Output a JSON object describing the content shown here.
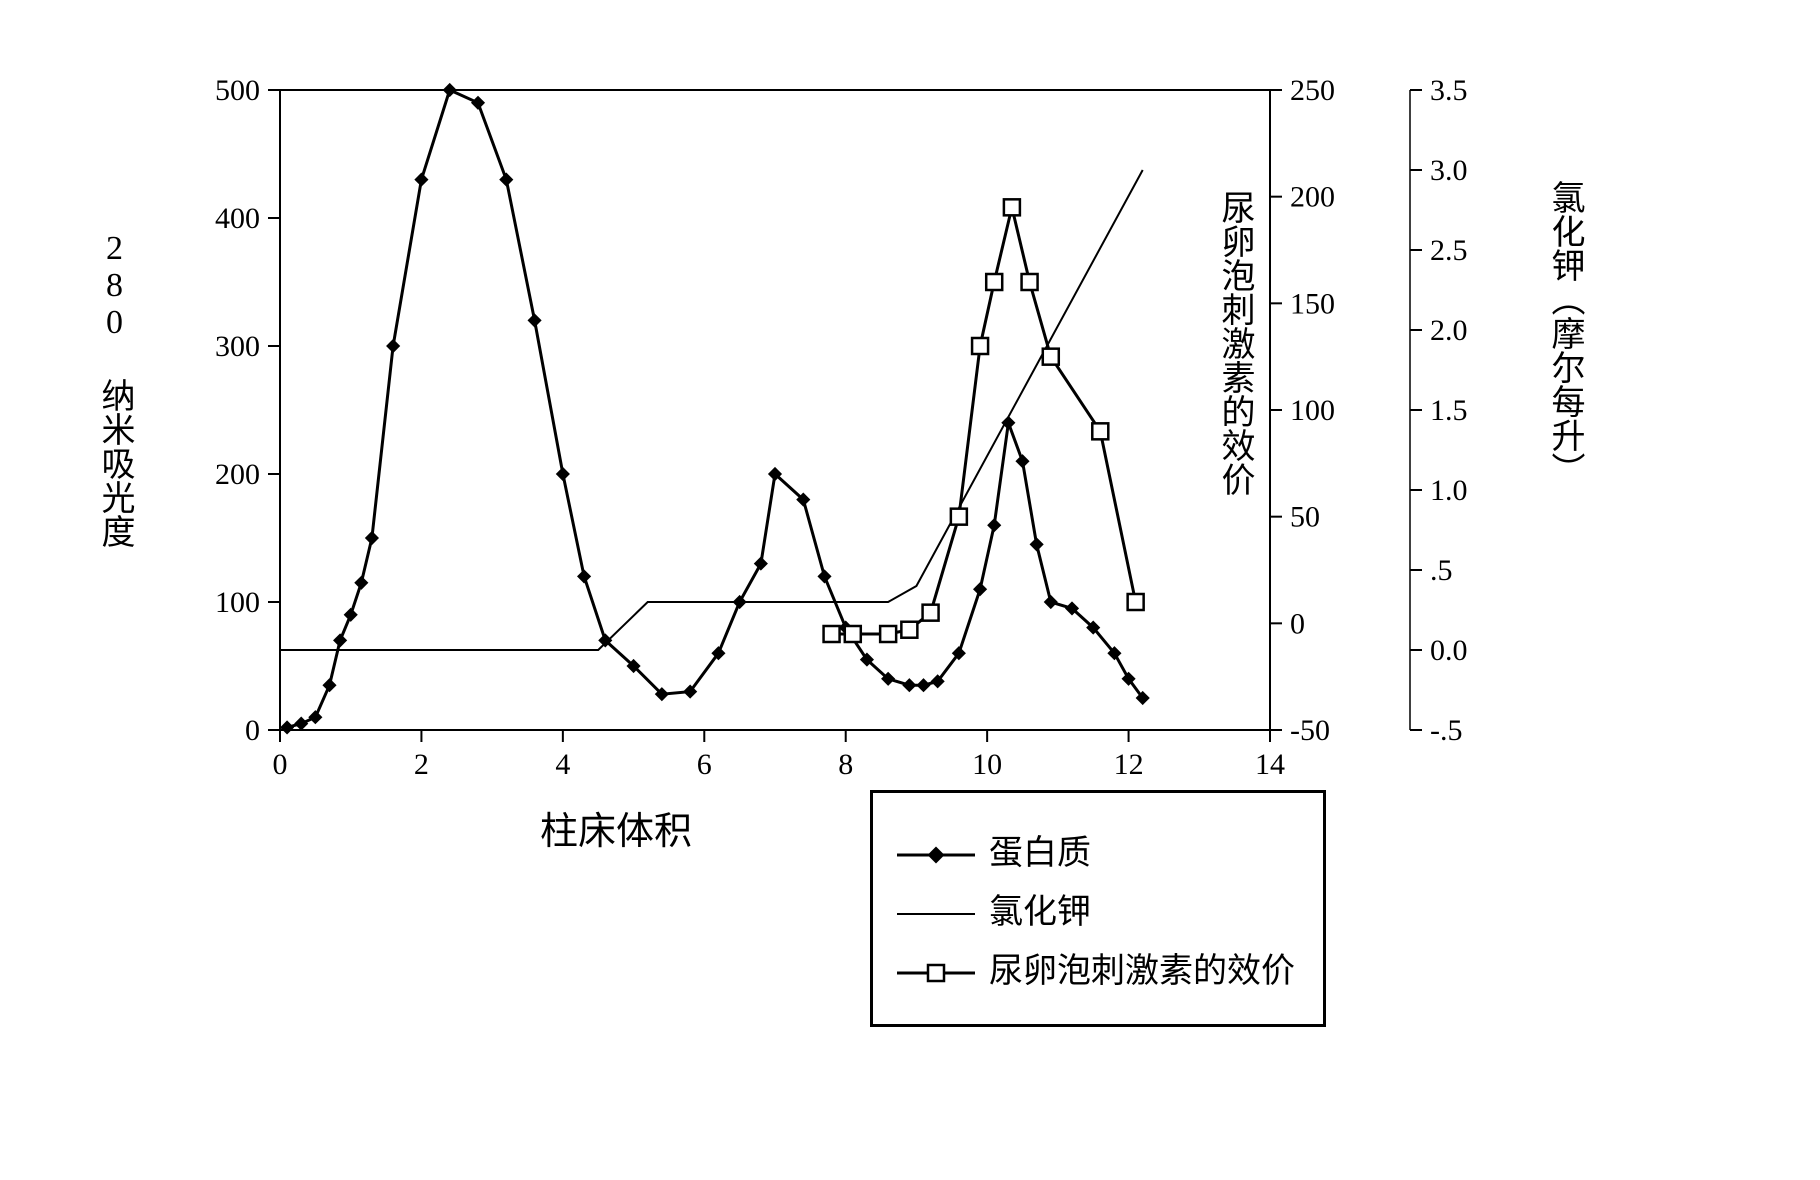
{
  "chart": {
    "type": "line-multi-axis",
    "background_color": "#ffffff",
    "frame_color": "#000000",
    "frame_stroke": 2,
    "tick_color": "#000000",
    "tick_fontsize": 30,
    "tick_font": "Times New Roman",
    "axes_labels": {
      "x": "柱床体积",
      "y_left": "280 纳米吸光度",
      "y_right_inner": "尿卵泡刺激素的效价",
      "y_right_outer": "氯化钾（摩尔每升）",
      "fontsize": 34,
      "color": "#000000"
    },
    "x_axis": {
      "lim": [
        0,
        14
      ],
      "ticks": [
        0,
        2,
        4,
        6,
        8,
        10,
        12,
        14
      ]
    },
    "y_left_axis": {
      "lim": [
        0,
        500
      ],
      "ticks": [
        0,
        100,
        200,
        300,
        400,
        500
      ]
    },
    "y_right_inner_axis": {
      "lim": [
        -50,
        250
      ],
      "ticks": [
        -50,
        0,
        50,
        100,
        150,
        200,
        250
      ]
    },
    "y_right_outer_axis": {
      "lim": [
        -0.5,
        3.5
      ],
      "ticks": [
        -0.5,
        0.0,
        0.5,
        1.0,
        1.5,
        2.0,
        2.5,
        3.0,
        3.5
      ]
    },
    "legend": {
      "border_color": "#000000",
      "text_color": "#000000",
      "fontsize": 34,
      "items": [
        {
          "key": "protein",
          "label": "蛋白质"
        },
        {
          "key": "kcl",
          "label": "氯化钾"
        },
        {
          "key": "ufsh",
          "label": "尿卵泡刺激素的效价"
        }
      ]
    },
    "series": {
      "protein": {
        "axis": "y_left",
        "color": "#000000",
        "line_width": 3,
        "marker": "diamond-filled",
        "marker_size": 10,
        "points": [
          [
            0.1,
            2
          ],
          [
            0.3,
            5
          ],
          [
            0.5,
            10
          ],
          [
            0.7,
            35
          ],
          [
            0.85,
            70
          ],
          [
            1.0,
            90
          ],
          [
            1.15,
            115
          ],
          [
            1.3,
            150
          ],
          [
            1.6,
            300
          ],
          [
            2.0,
            430
          ],
          [
            2.4,
            500
          ],
          [
            2.8,
            490
          ],
          [
            3.2,
            430
          ],
          [
            3.6,
            320
          ],
          [
            4.0,
            200
          ],
          [
            4.3,
            120
          ],
          [
            4.6,
            70
          ],
          [
            5.0,
            50
          ],
          [
            5.4,
            28
          ],
          [
            5.8,
            30
          ],
          [
            6.2,
            60
          ],
          [
            6.5,
            100
          ],
          [
            6.8,
            130
          ],
          [
            7.0,
            200
          ],
          [
            7.4,
            180
          ],
          [
            7.7,
            120
          ],
          [
            8.0,
            80
          ],
          [
            8.3,
            55
          ],
          [
            8.6,
            40
          ],
          [
            8.9,
            35
          ],
          [
            9.1,
            35
          ],
          [
            9.3,
            38
          ],
          [
            9.6,
            60
          ],
          [
            9.9,
            110
          ],
          [
            10.1,
            160
          ],
          [
            10.3,
            240
          ],
          [
            10.5,
            210
          ],
          [
            10.7,
            145
          ],
          [
            10.9,
            100
          ],
          [
            11.2,
            95
          ],
          [
            11.5,
            80
          ],
          [
            11.8,
            60
          ],
          [
            12.0,
            40
          ],
          [
            12.2,
            25
          ]
        ]
      },
      "kcl": {
        "axis": "y_right_outer",
        "color": "#000000",
        "line_width": 2,
        "marker": "none",
        "points": [
          [
            0.0,
            0.0
          ],
          [
            4.5,
            0.0
          ],
          [
            5.2,
            0.3
          ],
          [
            8.6,
            0.3
          ],
          [
            9.0,
            0.4
          ],
          [
            12.2,
            3.0
          ]
        ]
      },
      "ufsh": {
        "axis": "y_right_inner",
        "color": "#000000",
        "line_width": 3,
        "marker": "square-open",
        "marker_size": 16,
        "points": [
          [
            7.8,
            -5
          ],
          [
            8.1,
            -5
          ],
          [
            8.6,
            -5
          ],
          [
            8.9,
            -3
          ],
          [
            9.2,
            5
          ],
          [
            9.6,
            50
          ],
          [
            9.9,
            130
          ],
          [
            10.1,
            160
          ],
          [
            10.35,
            195
          ],
          [
            10.6,
            160
          ],
          [
            10.9,
            125
          ],
          [
            11.6,
            90
          ],
          [
            12.1,
            10
          ]
        ]
      }
    }
  }
}
